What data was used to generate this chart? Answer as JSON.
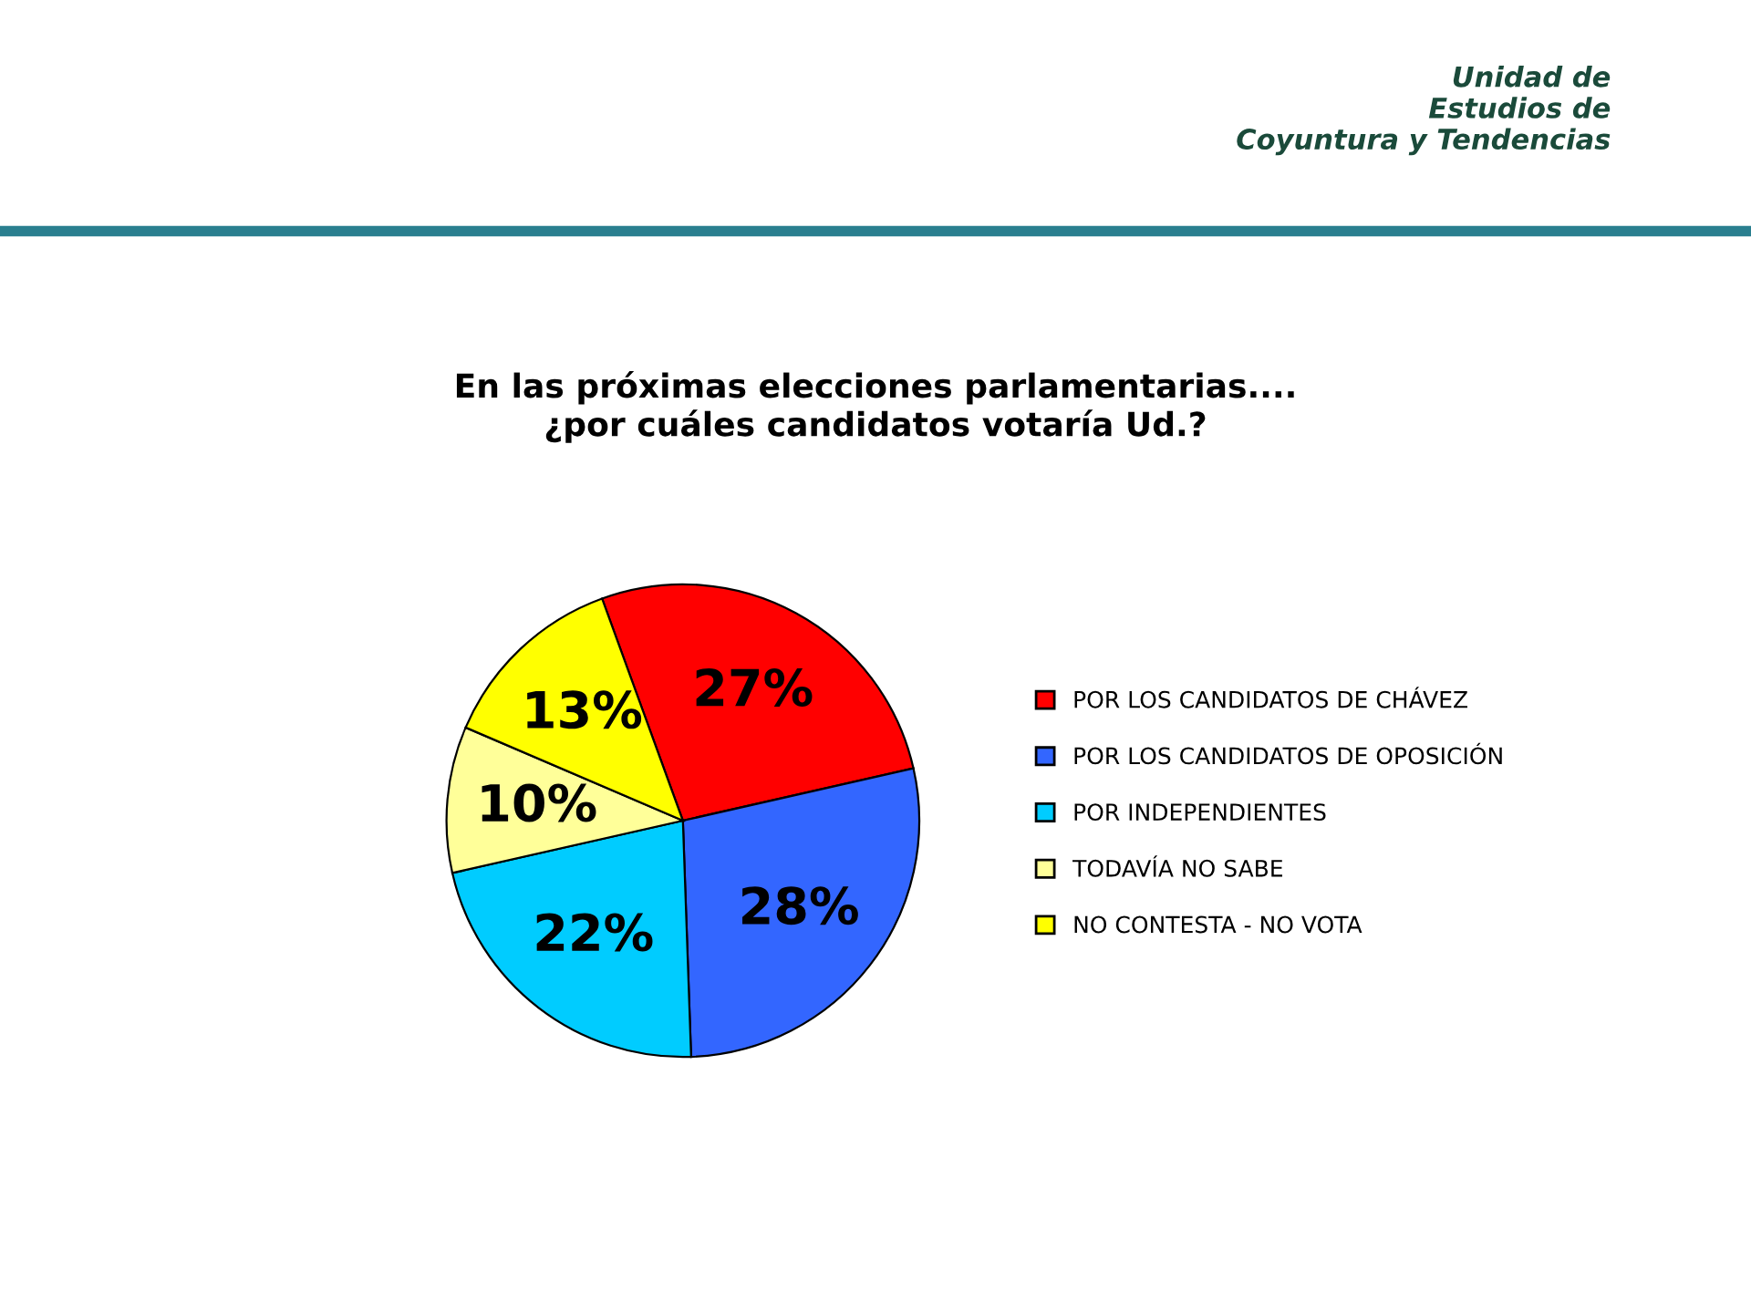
{
  "chart_data": {
    "type": "pie",
    "title": "En las próximas elecciones parlamentarias....\n¿por cuáles candidatos votaría Ud.?",
    "categories": [
      "POR LOS CANDIDATOS DE CHÁVEZ",
      "POR LOS CANDIDATOS DE OPOSICIÓN",
      "POR INDEPENDIENTES",
      "TODAVÍA NO SABE",
      "NO CONTESTA - NO VOTA"
    ],
    "values": [
      27,
      28,
      22,
      10,
      13
    ],
    "colors": [
      "#ff0000",
      "#3366ff",
      "#00ccff",
      "#ffff99",
      "#ffff00"
    ],
    "value_labels": [
      "27%",
      "28%",
      "22%",
      "10%",
      "13%"
    ],
    "legend": "right",
    "annotations": [
      "Unidad de\nEstudios de\nCoyuntura y Tendencias"
    ]
  }
}
